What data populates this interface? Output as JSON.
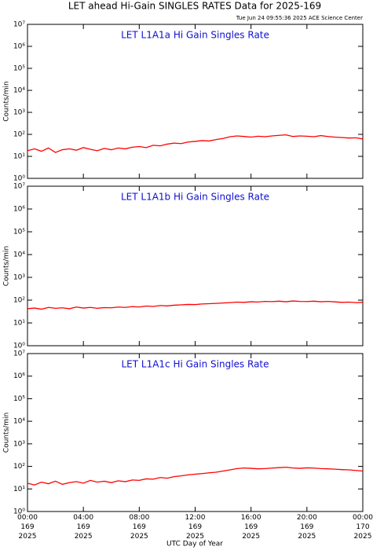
{
  "title": "LET ahead Hi-Gain SINGLES RATES Data for 2025-169",
  "timestamp": "Tue Jun 24 09:55:36 2025 ACE Science Center",
  "xlabel": "UTC Day of Year",
  "chart_data": [
    {
      "type": "line",
      "title": "LET L1A1a Hi Gain Singles Rate",
      "ylabel": "Counts/min",
      "log_y": true,
      "color": "#ff0000",
      "x": [
        0,
        0.5,
        1,
        1.5,
        2,
        2.5,
        3,
        3.5,
        4,
        4.5,
        5,
        5.5,
        6,
        6.5,
        7,
        7.5,
        8,
        8.5,
        9,
        9.5,
        10,
        10.5,
        11,
        11.5,
        12,
        12.5,
        13,
        13.5,
        14,
        14.5,
        15,
        15.5,
        16,
        16.5,
        17,
        17.5,
        18,
        18.5,
        19,
        19.5,
        20,
        20.5,
        21,
        21.5,
        22,
        22.5,
        23,
        23.5,
        24
      ],
      "values": [
        18,
        22,
        17,
        24,
        15,
        20,
        22,
        19,
        25,
        21,
        18,
        23,
        20,
        24,
        22,
        26,
        28,
        25,
        32,
        30,
        36,
        40,
        38,
        45,
        48,
        52,
        50,
        58,
        65,
        78,
        85,
        80,
        75,
        82,
        78,
        85,
        90,
        95,
        80,
        85,
        82,
        78,
        88,
        80,
        75,
        72,
        68,
        70,
        62
      ],
      "xlim": [
        0,
        24
      ],
      "ylim": [
        1,
        10000000
      ],
      "yticks": [
        {
          "value": 1,
          "label": "10⁰"
        },
        {
          "value": 10,
          "label": "10¹"
        },
        {
          "value": 100,
          "label": "10²"
        },
        {
          "value": 1000,
          "label": "10³"
        },
        {
          "value": 10000,
          "label": "10⁴"
        },
        {
          "value": 100000,
          "label": "10⁵"
        },
        {
          "value": 1000000,
          "label": "10⁶"
        },
        {
          "value": 10000000,
          "label": "10⁷"
        }
      ]
    },
    {
      "type": "line",
      "title": "LET L1A1b Hi Gain Singles Rate",
      "ylabel": "Counts/min",
      "log_y": true,
      "color": "#ff0000",
      "x": [
        0,
        0.5,
        1,
        1.5,
        2,
        2.5,
        3,
        3.5,
        4,
        4.5,
        5,
        5.5,
        6,
        6.5,
        7,
        7.5,
        8,
        8.5,
        9,
        9.5,
        10,
        10.5,
        11,
        11.5,
        12,
        12.5,
        13,
        13.5,
        14,
        14.5,
        15,
        15.5,
        16,
        16.5,
        17,
        17.5,
        18,
        18.5,
        19,
        19.5,
        20,
        20.5,
        21,
        21.5,
        22,
        22.5,
        23,
        23.5,
        24
      ],
      "values": [
        42,
        45,
        40,
        48,
        44,
        46,
        42,
        50,
        45,
        48,
        44,
        47,
        46,
        50,
        48,
        52,
        50,
        55,
        53,
        58,
        56,
        60,
        62,
        65,
        64,
        68,
        70,
        72,
        75,
        78,
        82,
        80,
        85,
        83,
        88,
        86,
        90,
        85,
        92,
        88,
        87,
        90,
        85,
        88,
        84,
        80,
        82,
        78,
        80
      ],
      "xlim": [
        0,
        24
      ],
      "ylim": [
        1,
        10000000
      ],
      "yticks": [
        {
          "value": 1,
          "label": "10⁰"
        },
        {
          "value": 10,
          "label": "10¹"
        },
        {
          "value": 100,
          "label": "10²"
        },
        {
          "value": 1000,
          "label": "10³"
        },
        {
          "value": 10000,
          "label": "10⁴"
        },
        {
          "value": 100000,
          "label": "10⁵"
        },
        {
          "value": 1000000,
          "label": "10⁶"
        },
        {
          "value": 10000000,
          "label": "10⁷"
        }
      ]
    },
    {
      "type": "line",
      "title": "LET L1A1c Hi Gain Singles Rate",
      "ylabel": "Counts/min",
      "log_y": true,
      "color": "#ff0000",
      "x": [
        0,
        0.5,
        1,
        1.5,
        2,
        2.5,
        3,
        3.5,
        4,
        4.5,
        5,
        5.5,
        6,
        6.5,
        7,
        7.5,
        8,
        8.5,
        9,
        9.5,
        10,
        10.5,
        11,
        11.5,
        12,
        12.5,
        13,
        13.5,
        14,
        14.5,
        15,
        15.5,
        16,
        16.5,
        17,
        17.5,
        18,
        18.5,
        19,
        19.5,
        20,
        20.5,
        21,
        21.5,
        22,
        22.5,
        23,
        23.5,
        24
      ],
      "values": [
        18,
        15,
        20,
        17,
        22,
        16,
        19,
        21,
        18,
        24,
        20,
        22,
        19,
        23,
        21,
        25,
        24,
        28,
        27,
        32,
        30,
        35,
        38,
        42,
        45,
        48,
        52,
        55,
        62,
        70,
        80,
        85,
        82,
        78,
        80,
        84,
        88,
        92,
        85,
        82,
        86,
        84,
        80,
        78,
        75,
        72,
        70,
        66,
        62
      ],
      "xlim": [
        0,
        24
      ],
      "ylim": [
        1,
        10000000
      ],
      "yticks": [
        {
          "value": 1,
          "label": "10⁰"
        },
        {
          "value": 10,
          "label": "10¹"
        },
        {
          "value": 100,
          "label": "10²"
        },
        {
          "value": 1000,
          "label": "10³"
        },
        {
          "value": 10000,
          "label": "10⁴"
        },
        {
          "value": 100000,
          "label": "10⁵"
        },
        {
          "value": 1000000,
          "label": "10⁶"
        },
        {
          "value": 10000000,
          "label": "10⁷"
        }
      ],
      "xticks": [
        {
          "value": 0,
          "label": "00:00\n169\n2025"
        },
        {
          "value": 4,
          "label": "04:00\n169\n2025"
        },
        {
          "value": 8,
          "label": "08:00\n169\n2025"
        },
        {
          "value": 12,
          "label": "12:00\n169\n2025"
        },
        {
          "value": 16,
          "label": "16:00\n169\n2025"
        },
        {
          "value": 20,
          "label": "20:00\n169\n2025"
        },
        {
          "value": 24,
          "label": "00:00\n170\n2025"
        }
      ]
    }
  ]
}
